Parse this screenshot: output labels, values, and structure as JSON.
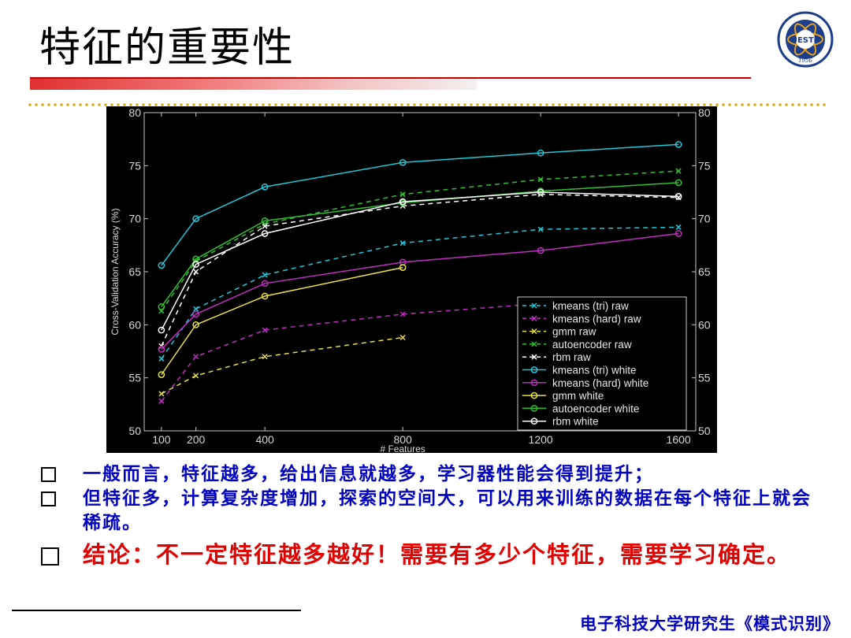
{
  "slide": {
    "title": "特征的重要性",
    "bullets": [
      "一般而言，特征越多，给出信息就越多，学习器性能会得到提升；",
      "但特征多，计算复杂度增加，探索的空间大，可以用来训练的数据在每个特征上就会稀疏。"
    ],
    "conclusion": "结论：不一定特征越多越好！需要有多少个特征，需要学习确定。",
    "footer": "电子科技大学研究生《模式识别》",
    "logo_text": "UESTC",
    "logo_year": "1956"
  },
  "colors": {
    "title_accent": "#c00000",
    "bullet_text": "#0000c0",
    "conclusion_text": "#e00000",
    "dots": "#d6a400"
  },
  "chart_data": {
    "type": "line",
    "xlabel": "# Features",
    "ylabel": "Cross-Validation Accuracy (%)",
    "x": [
      100,
      200,
      400,
      800,
      1200,
      1600
    ],
    "xlim": [
      50,
      1650
    ],
    "ylim": [
      50,
      80
    ],
    "yticks": [
      50,
      55,
      60,
      65,
      70,
      75,
      80
    ],
    "legend_position": "lower-right",
    "series": [
      {
        "name": "kmeans (tri) raw",
        "color": "#22c8d8",
        "style": "dashed",
        "marker": "x",
        "values": [
          56.8,
          61.5,
          64.7,
          67.7,
          69.0,
          69.2
        ]
      },
      {
        "name": "kmeans (hard) raw",
        "color": "#c030c0",
        "style": "dashed",
        "marker": "x",
        "values": [
          52.8,
          57.0,
          59.5,
          61.0,
          62.0,
          null
        ]
      },
      {
        "name": "gmm raw",
        "color": "#e8e040",
        "style": "dashed",
        "marker": "x",
        "values": [
          53.5,
          55.2,
          57.0,
          58.8,
          null,
          null
        ]
      },
      {
        "name": "autoencoder raw",
        "color": "#30c030",
        "style": "dashed",
        "marker": "x",
        "values": [
          61.3,
          66.0,
          69.5,
          72.3,
          73.7,
          74.5
        ]
      },
      {
        "name": "rbm raw",
        "color": "#ffffff",
        "style": "dashed",
        "marker": "x",
        "values": [
          58.0,
          65.0,
          69.3,
          71.2,
          72.3,
          72.0
        ]
      },
      {
        "name": "kmeans (tri) white",
        "color": "#22c8d8",
        "style": "solid",
        "marker": "o",
        "values": [
          65.6,
          70.0,
          73.0,
          75.3,
          76.2,
          77.0
        ]
      },
      {
        "name": "kmeans (hard) white",
        "color": "#c030c0",
        "style": "solid",
        "marker": "o",
        "values": [
          57.7,
          61.0,
          63.9,
          65.9,
          67.0,
          68.6
        ]
      },
      {
        "name": "gmm white",
        "color": "#e8e040",
        "style": "solid",
        "marker": "o",
        "values": [
          55.3,
          60.0,
          62.7,
          65.4,
          null,
          null
        ]
      },
      {
        "name": "autoencoder white",
        "color": "#30c030",
        "style": "solid",
        "marker": "o",
        "values": [
          61.7,
          66.2,
          69.8,
          71.5,
          72.6,
          73.4
        ]
      },
      {
        "name": "rbm white",
        "color": "#ffffff",
        "style": "solid",
        "marker": "o",
        "values": [
          59.5,
          65.7,
          68.6,
          71.6,
          72.5,
          72.1
        ]
      }
    ]
  }
}
